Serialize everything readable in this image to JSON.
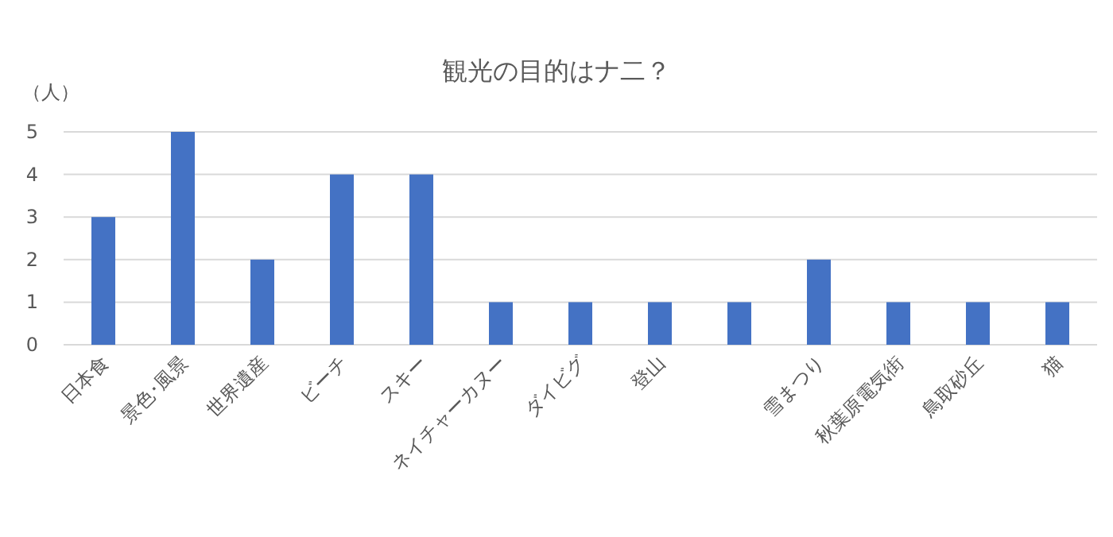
{
  "chart_data": {
    "type": "bar",
    "title": "観光の目的はナ二？",
    "ylabel": "（人）",
    "categories": [
      "日本食",
      "景色･風景",
      "世界遺産",
      "ビーチ",
      "スキー",
      "ネイチャーカヌー",
      "ダイビグ",
      "登山",
      null,
      "雪まつり",
      "秋葉原電気街",
      "鳥取砂丘",
      "猫"
    ],
    "values": [
      3,
      5,
      2,
      4,
      4,
      1,
      1,
      1,
      1,
      2,
      1,
      1,
      1
    ],
    "color": "#4472c4",
    "ylim": [
      0,
      5
    ],
    "yticks": [
      0,
      1,
      2,
      3,
      4,
      5
    ],
    "grid": "y"
  }
}
